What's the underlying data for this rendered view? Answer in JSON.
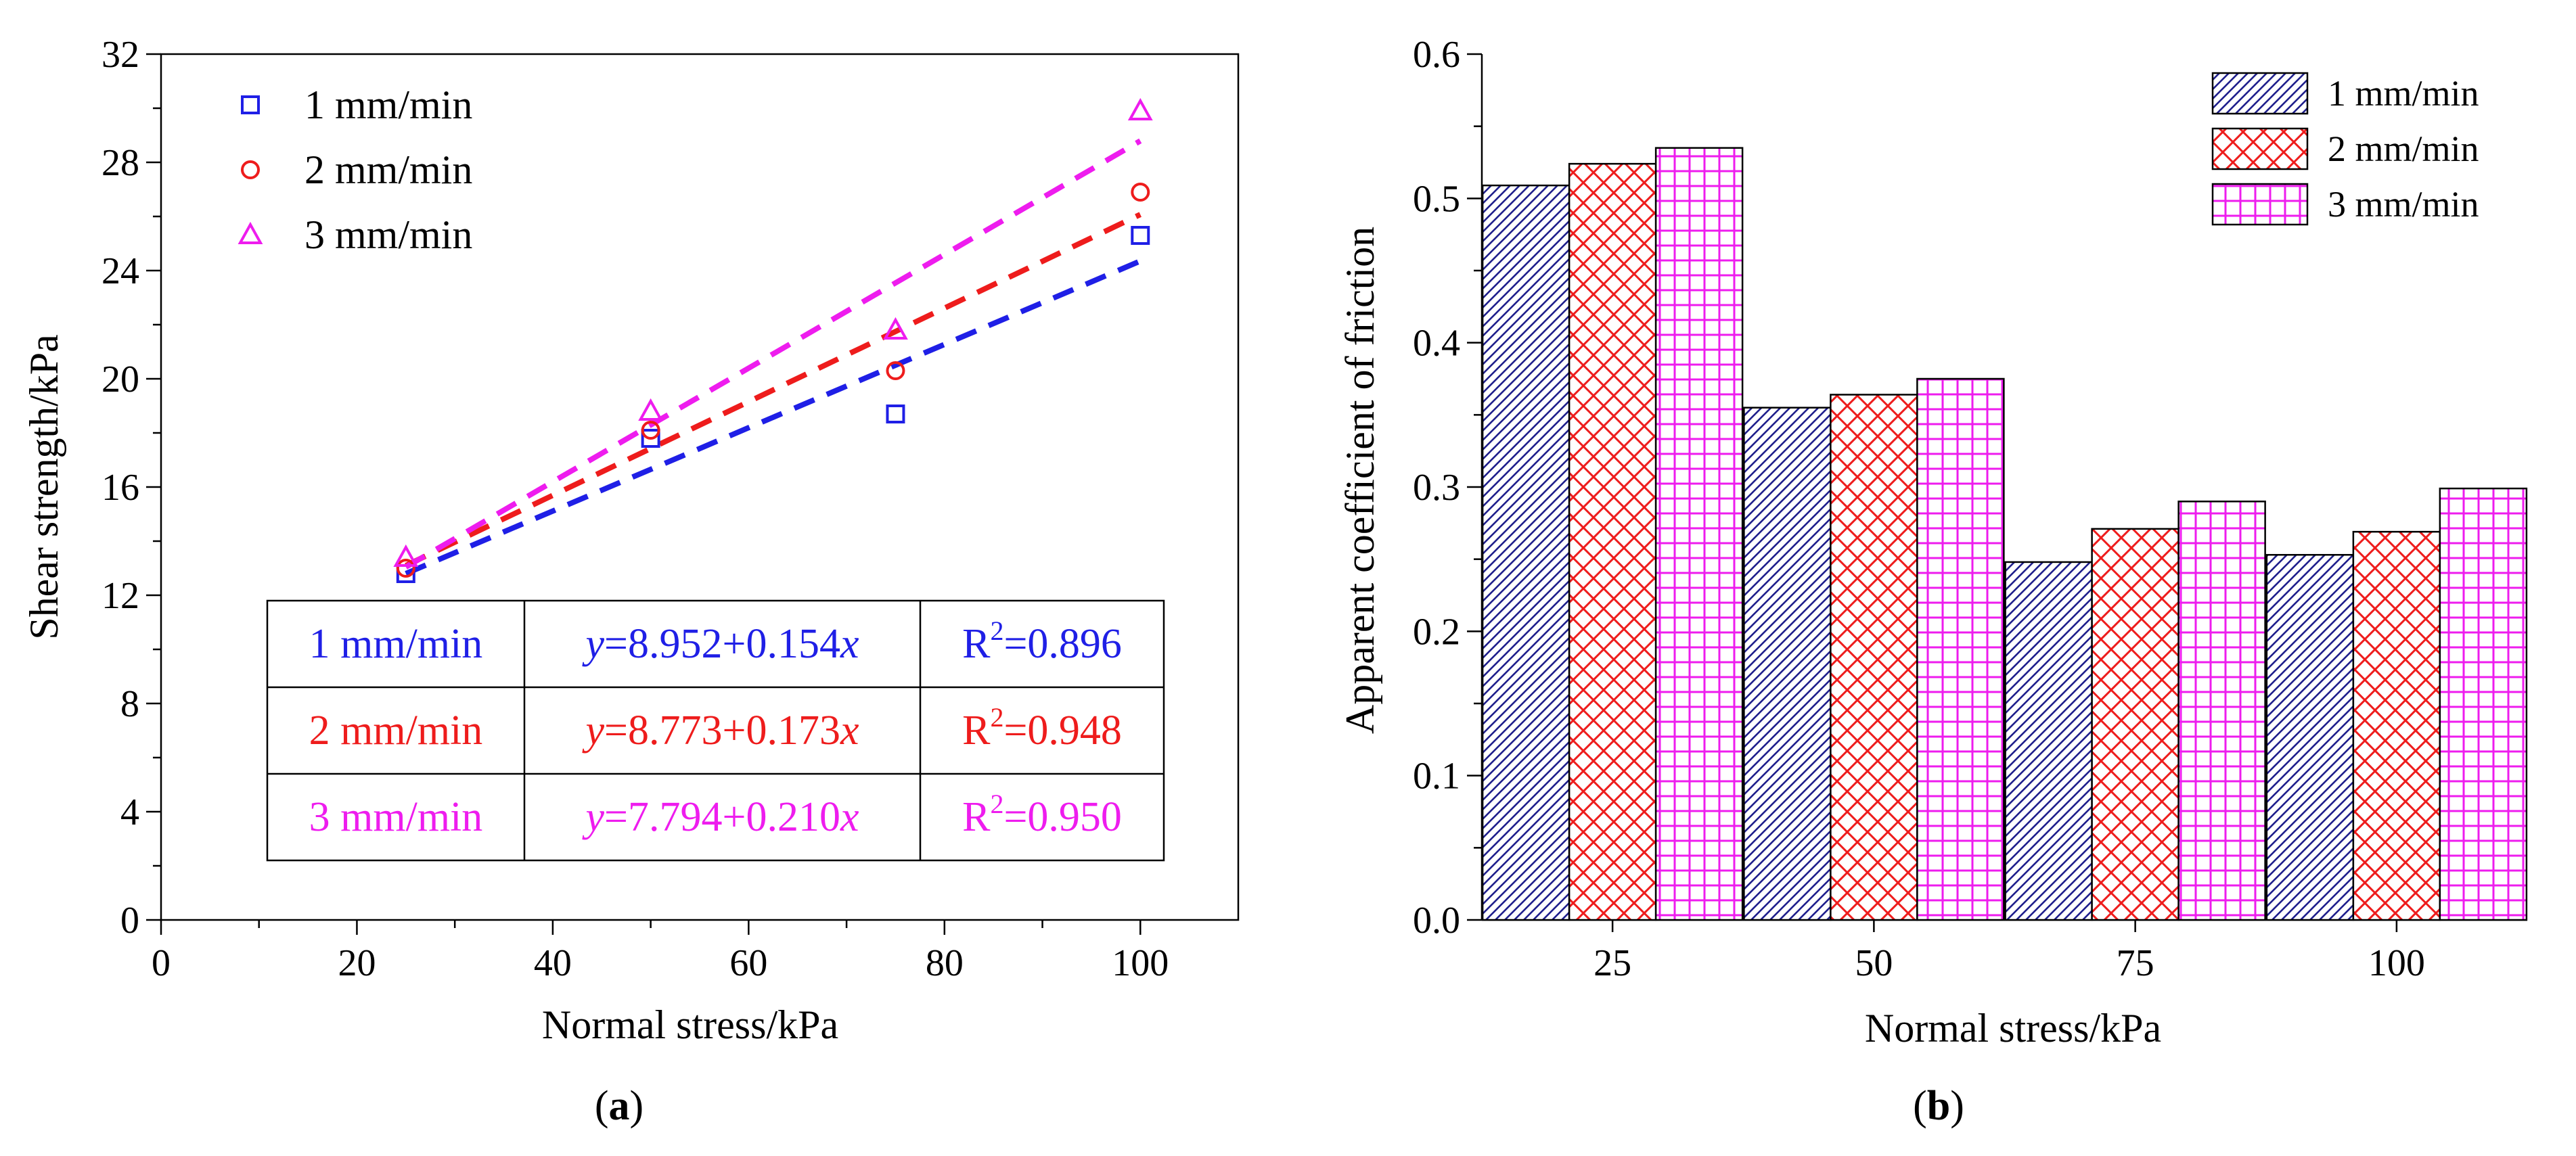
{
  "chart_data": [
    {
      "type": "scatter",
      "panel_label": "a",
      "xlabel": "Normal stress/kPa",
      "ylabel": "Shear strength/kPa",
      "xlim": [
        0,
        110
      ],
      "ylim": [
        0,
        32
      ],
      "x_ticks": [
        0,
        20,
        40,
        60,
        80,
        100
      ],
      "y_ticks": [
        0,
        4,
        8,
        12,
        16,
        20,
        24,
        28,
        32
      ],
      "series": [
        {
          "name": "1 mm/min",
          "color": "#1f1fe6",
          "marker": "square",
          "x": [
            25,
            50,
            75,
            100
          ],
          "y": [
            12.8,
            17.8,
            18.7,
            25.3
          ],
          "fit": {
            "intercept": 8.952,
            "slope": 0.154
          }
        },
        {
          "name": "2 mm/min",
          "color": "#ee1c1c",
          "marker": "circle",
          "x": [
            25,
            50,
            75,
            100
          ],
          "y": [
            13.0,
            18.1,
            20.3,
            26.9
          ],
          "fit": {
            "intercept": 8.773,
            "slope": 0.173
          }
        },
        {
          "name": "3 mm/min",
          "color": "#ee1cee",
          "marker": "triangle",
          "x": [
            25,
            50,
            75,
            100
          ],
          "y": [
            13.4,
            18.8,
            21.8,
            29.9
          ],
          "fit": {
            "intercept": 7.794,
            "slope": 0.21
          }
        }
      ],
      "fit_table": [
        {
          "rate": "1 mm/min",
          "eq_y": "y",
          "eq_body": "=8.952+0.154",
          "eq_x": "x",
          "r_label": "R",
          "r_sup": "2",
          "r_val": "=0.896"
        },
        {
          "rate": "2 mm/min",
          "eq_y": "y",
          "eq_body": "=8.773+0.173",
          "eq_x": "x",
          "r_label": "R",
          "r_sup": "2",
          "r_val": "=0.948"
        },
        {
          "rate": "3 mm/min",
          "eq_y": "y",
          "eq_body": "=7.794+0.210",
          "eq_x": "x",
          "r_label": "R",
          "r_sup": "2",
          "r_val": "=0.950"
        }
      ]
    },
    {
      "type": "bar",
      "panel_label": "b",
      "xlabel": "Normal stress/kPa",
      "ylabel": "Apparent coefficient of friction",
      "ylim": [
        0,
        0.6
      ],
      "y_ticks": [
        "0.0",
        "0.1",
        "0.2",
        "0.3",
        "0.4",
        "0.5",
        "0.6"
      ],
      "categories": [
        "25",
        "50",
        "75",
        "100"
      ],
      "series": [
        {
          "name": "1 mm/min",
          "color": "#1f1f8c",
          "pattern": "diagonal",
          "values": [
            0.509,
            0.355,
            0.248,
            0.253
          ]
        },
        {
          "name": "2 mm/min",
          "color": "#ee1c1c",
          "pattern": "crosshatch",
          "values": [
            0.524,
            0.364,
            0.271,
            0.269
          ]
        },
        {
          "name": "3 mm/min",
          "color": "#ee1cee",
          "pattern": "grid",
          "values": [
            0.535,
            0.375,
            0.29,
            0.299
          ]
        }
      ]
    }
  ]
}
